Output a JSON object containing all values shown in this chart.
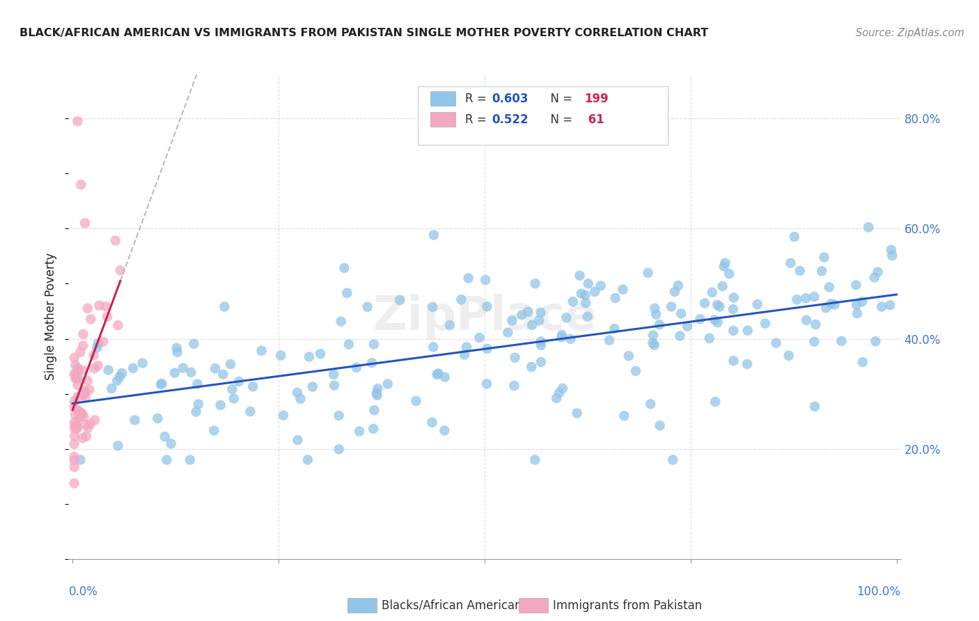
{
  "title": "BLACK/AFRICAN AMERICAN VS IMMIGRANTS FROM PAKISTAN SINGLE MOTHER POVERTY CORRELATION CHART",
  "source": "Source: ZipAtlas.com",
  "ylabel": "Single Mother Poverty",
  "blue_color": "#92c5e8",
  "pink_color": "#f4a8c0",
  "blue_line_color": "#2255bb",
  "pink_line_color": "#cc2255",
  "blue_R": 0.603,
  "blue_N": 199,
  "pink_R": 0.522,
  "pink_N": 61,
  "legend_label_blue": "Blacks/African Americans",
  "legend_label_pink": "Immigrants from Pakistan",
  "watermark": "ZipPlace",
  "text_color": "#222222",
  "axis_color": "#4477cc",
  "source_color": "#888888",
  "grid_color": "#dddddd",
  "legend_R_color": "#2255bb",
  "legend_N_color": "#cc2255"
}
